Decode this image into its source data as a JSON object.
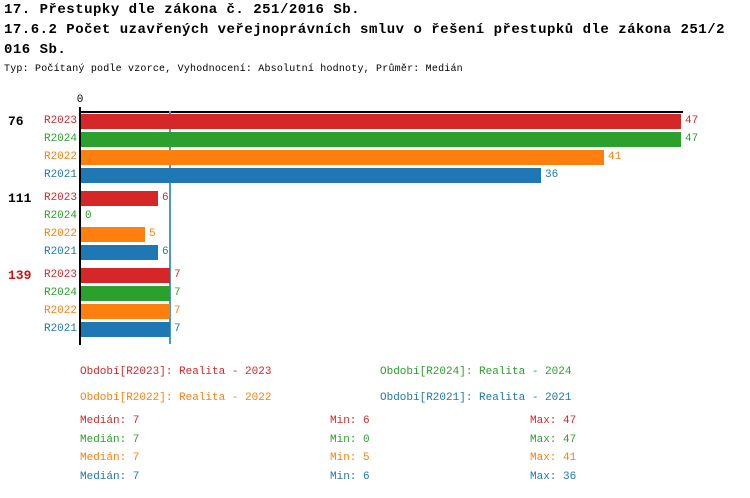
{
  "title": {
    "line1": "17. Přestupky dle zákona č. 251/2016 Sb.",
    "line2": "17.6.2 Počet uzavřených veřejnoprávních smluv o řešení přestupků dle zákona 251/2",
    "line3": "016 Sb.",
    "subtitle": "Typ: Počítaný podle vzorce, Vyhodnocení: Absolutní hodnoty, Průměr: Medián"
  },
  "colors": {
    "R2023": "#d62728",
    "R2024": "#2ca02c",
    "R2022": "#ff7f0e",
    "R2021": "#1f77b4",
    "median_line": "#4e97c9",
    "axis": "#000000",
    "group_label_default": "#000000",
    "group_label_highlight": "#cc1111"
  },
  "chart_data": {
    "type": "bar",
    "orientation": "horizontal",
    "x_axis": {
      "tick_label": "0",
      "max_value": 47
    },
    "median_value": 7,
    "series_order": [
      "R2023",
      "R2024",
      "R2022",
      "R2021"
    ],
    "groups": [
      {
        "label": "76",
        "label_highlight": false,
        "bars": [
          {
            "series": "R2023",
            "value": 47
          },
          {
            "series": "R2024",
            "value": 47
          },
          {
            "series": "R2022",
            "value": 41
          },
          {
            "series": "R2021",
            "value": 36
          }
        ]
      },
      {
        "label": "111",
        "label_highlight": false,
        "bars": [
          {
            "series": "R2023",
            "value": 6
          },
          {
            "series": "R2024",
            "value": 0
          },
          {
            "series": "R2022",
            "value": 5
          },
          {
            "series": "R2021",
            "value": 6
          }
        ]
      },
      {
        "label": "139",
        "label_highlight": true,
        "bars": [
          {
            "series": "R2023",
            "value": 7
          },
          {
            "series": "R2024",
            "value": 7
          },
          {
            "series": "R2022",
            "value": 7
          },
          {
            "series": "R2021",
            "value": 7
          }
        ]
      }
    ],
    "legend": [
      {
        "series": "R2023",
        "text": "Období[R2023]: Realita - 2023"
      },
      {
        "series": "R2024",
        "text": "Období[R2024]: Realita - 2024"
      },
      {
        "series": "R2022",
        "text": "Období[R2022]: Realita - 2022"
      },
      {
        "series": "R2021",
        "text": "Období[R2021]: Realita - 2021"
      }
    ],
    "stats": [
      {
        "series": "R2023",
        "median": "Medián: 7",
        "min": "Min: 6",
        "max": "Max: 47"
      },
      {
        "series": "R2024",
        "median": "Medián: 7",
        "min": "Min: 0",
        "max": "Max: 47"
      },
      {
        "series": "R2022",
        "median": "Medián: 7",
        "min": "Min: 5",
        "max": "Max: 41"
      },
      {
        "series": "R2021",
        "median": "Medián: 7",
        "min": "Min: 6",
        "max": "Max: 36"
      }
    ]
  }
}
